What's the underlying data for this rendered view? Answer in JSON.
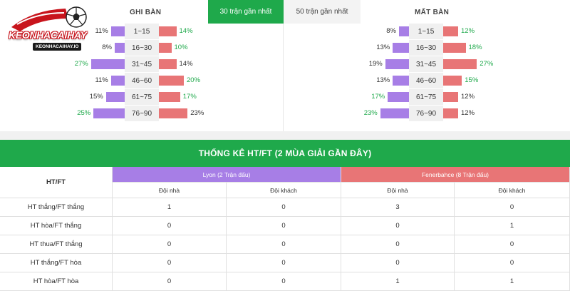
{
  "logo": {
    "text": "KEONHACAIHAY",
    "subtext": "KEONHACAIHAY.IO"
  },
  "tabs": [
    {
      "label": "30 trận gần nhất",
      "active": true
    },
    {
      "label": "50 trận gần nhất",
      "active": false
    }
  ],
  "scored_label": "GHI BÀN",
  "conceded_label": "MẤT BÀN",
  "colors": {
    "green": "#1fa94b",
    "purple": "#a77ee6",
    "red": "#e87576"
  },
  "scored": [
    {
      "range": "1~15",
      "home": "11%",
      "away": "14%",
      "home_value": 11,
      "away_value": 14,
      "home_color": "dark",
      "away_color": "green"
    },
    {
      "range": "16~30",
      "home": "8%",
      "away": "10%",
      "home_value": 8,
      "away_value": 10,
      "home_color": "dark",
      "away_color": "green"
    },
    {
      "range": "31~45",
      "home": "27%",
      "away": "14%",
      "home_value": 27,
      "away_value": 14,
      "home_color": "green",
      "away_color": "dark"
    },
    {
      "range": "46~60",
      "home": "11%",
      "away": "20%",
      "home_value": 11,
      "away_value": 20,
      "home_color": "dark",
      "away_color": "green"
    },
    {
      "range": "61~75",
      "home": "15%",
      "away": "17%",
      "home_value": 15,
      "away_value": 17,
      "home_color": "dark",
      "away_color": "green"
    },
    {
      "range": "76~90",
      "home": "25%",
      "away": "23%",
      "home_value": 25,
      "away_value": 23,
      "home_color": "green",
      "away_color": "dark"
    }
  ],
  "conceded": [
    {
      "range": "1~15",
      "home": "8%",
      "away": "12%",
      "home_value": 8,
      "away_value": 12,
      "home_color": "dark",
      "away_color": "green"
    },
    {
      "range": "16~30",
      "home": "13%",
      "away": "18%",
      "home_value": 13,
      "away_value": 18,
      "home_color": "dark",
      "away_color": "green"
    },
    {
      "range": "31~45",
      "home": "19%",
      "away": "27%",
      "home_value": 19,
      "away_value": 27,
      "home_color": "dark",
      "away_color": "green"
    },
    {
      "range": "46~60",
      "home": "13%",
      "away": "15%",
      "home_value": 13,
      "away_value": 15,
      "home_color": "dark",
      "away_color": "green"
    },
    {
      "range": "61~75",
      "home": "17%",
      "away": "12%",
      "home_value": 17,
      "away_value": 12,
      "home_color": "green",
      "away_color": "dark"
    },
    {
      "range": "76~90",
      "home": "23%",
      "away": "12%",
      "home_value": 23,
      "away_value": 12,
      "home_color": "green",
      "away_color": "dark"
    }
  ],
  "htft": {
    "title": "THỐNG KÊ HT/FT (2 MÙA GIẢI GẦN ĐÂY)",
    "col_header": "HT/FT",
    "team1": "Lyon (2 Trận đấu)",
    "team2": "Fenerbahce (8 Trận đấu)",
    "home_label": "Đội nhà",
    "away_label": "Đội khách",
    "rows": [
      {
        "label": "HT thắng/FT thắng",
        "v": [
          "1",
          "0",
          "3",
          "0"
        ]
      },
      {
        "label": "HT hòa/FT thắng",
        "v": [
          "0",
          "0",
          "0",
          "1"
        ]
      },
      {
        "label": "HT thua/FT thắng",
        "v": [
          "0",
          "0",
          "0",
          "0"
        ]
      },
      {
        "label": "HT thắng/FT hòa",
        "v": [
          "0",
          "0",
          "0",
          "0"
        ]
      },
      {
        "label": "HT hòa/FT hòa",
        "v": [
          "0",
          "0",
          "1",
          "1"
        ]
      }
    ]
  }
}
